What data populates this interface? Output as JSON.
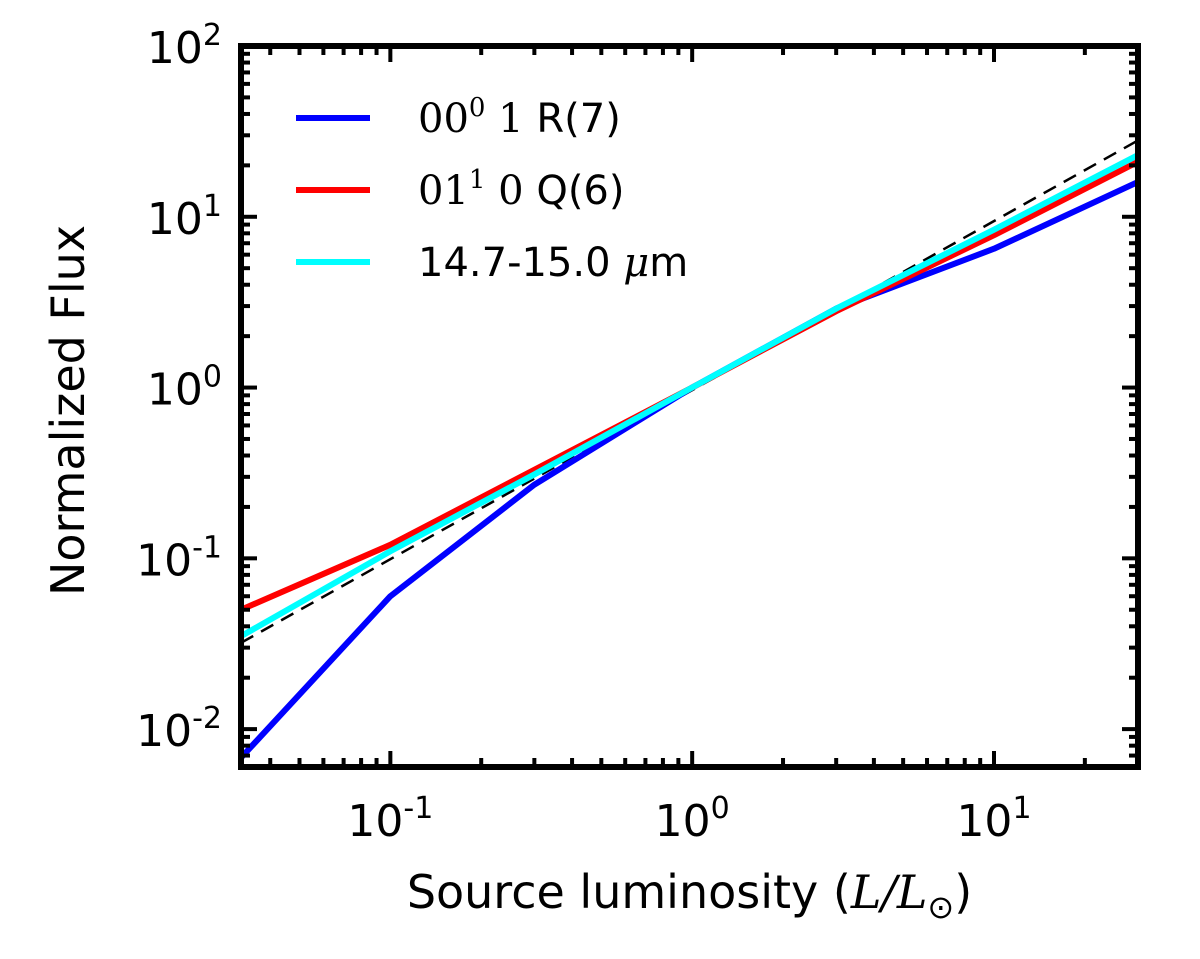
{
  "chart_data": {
    "type": "line",
    "xscale": "log",
    "yscale": "log",
    "xlim": [
      0.032,
      30
    ],
    "ylim": [
      0.006,
      100
    ],
    "xlabel": {
      "prefix": "Source luminosity (",
      "math": "L/L",
      "sun": "⊙",
      "suffix": ")"
    },
    "ylabel": "Normalized Flux",
    "xticks": [
      {
        "base": "10",
        "exp": "-1",
        "value": 0.1
      },
      {
        "base": "10",
        "exp": "0",
        "value": 1
      },
      {
        "base": "10",
        "exp": "1",
        "value": 10
      }
    ],
    "yticks": [
      {
        "base": "10",
        "exp": "-2",
        "value": 0.01
      },
      {
        "base": "10",
        "exp": "-1",
        "value": 0.1
      },
      {
        "base": "10",
        "exp": "0",
        "value": 1
      },
      {
        "base": "10",
        "exp": "1",
        "value": 10
      },
      {
        "base": "10",
        "exp": "2",
        "value": 100
      }
    ],
    "series": [
      {
        "name": "00^0 1 R(7)",
        "label_base": "00",
        "label_sup": "0",
        "label_mid": " 1",
        "label_rest": " R(7)",
        "color": "#0000ff",
        "x": [
          0.032,
          0.1,
          0.3,
          1,
          3,
          10,
          30
        ],
        "y": [
          0.0068,
          0.06,
          0.27,
          1.0,
          2.9,
          6.5,
          16
        ]
      },
      {
        "name": "01^1 0 Q(6)",
        "label_base": "01",
        "label_sup": "1",
        "label_mid": " 0",
        "label_rest": " Q(6)",
        "color": "#ff0000",
        "x": [
          0.032,
          0.1,
          0.3,
          1,
          3,
          10,
          30
        ],
        "y": [
          0.05,
          0.12,
          0.33,
          1.0,
          2.8,
          7.8,
          21
        ]
      },
      {
        "name": "14.7-15.0 μm",
        "label_text": "14.7-15.0 ",
        "label_mu": "μ",
        "label_unit": "m",
        "color": "#00ffff",
        "x": [
          0.032,
          0.1,
          0.3,
          1,
          3,
          10,
          30
        ],
        "y": [
          0.035,
          0.11,
          0.31,
          1.0,
          2.9,
          8.4,
          23
        ]
      }
    ],
    "reference_line": {
      "style": "dashed",
      "color": "#000000",
      "x": [
        0.032,
        30
      ],
      "y": [
        0.032,
        28
      ]
    },
    "legend_position": "top-left"
  }
}
